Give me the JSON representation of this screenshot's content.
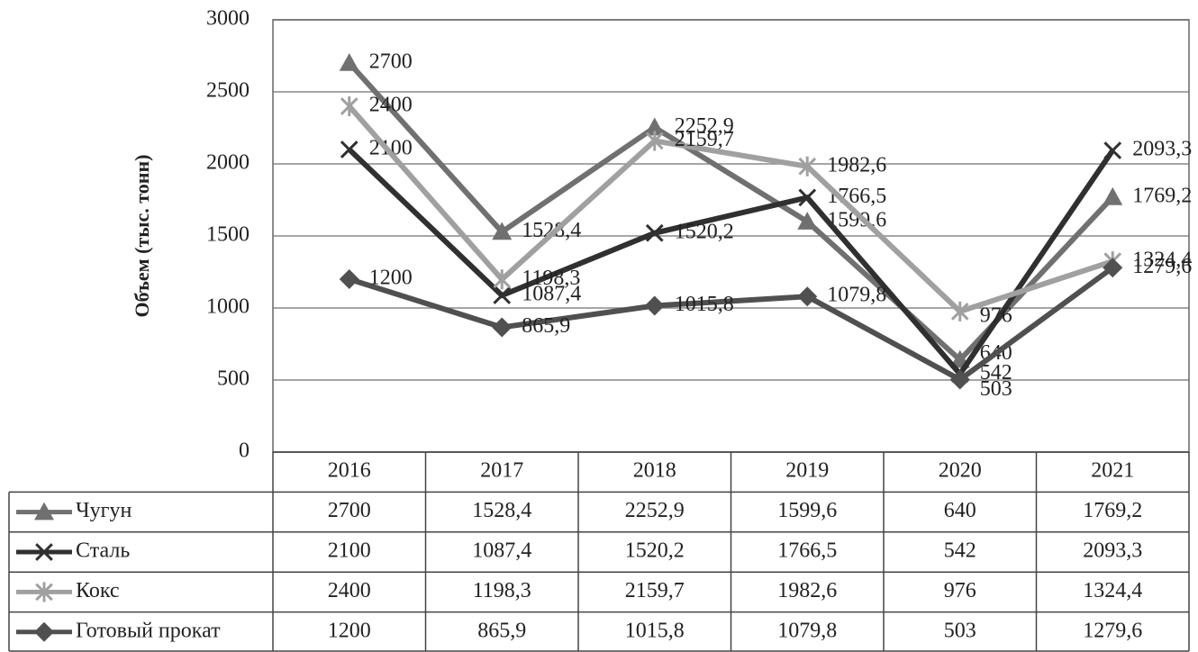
{
  "chart_data": {
    "type": "line",
    "y_label": "Объем (тыс. тонн)",
    "categories": [
      "2016",
      "2017",
      "2018",
      "2019",
      "2020",
      "2021"
    ],
    "ylim": [
      0,
      3000
    ],
    "yticks": [
      0,
      500,
      1000,
      1500,
      2000,
      2500,
      3000
    ],
    "grid": true,
    "series": [
      {
        "name": "Чугун",
        "color": "#707070",
        "marker": "triangle",
        "values": [
          2700,
          1528.4,
          2252.9,
          1599.6,
          640,
          1769.2
        ],
        "value_labels": [
          "2700",
          "1528,4",
          "2252,9",
          "1599,6",
          "640",
          "1769,2"
        ]
      },
      {
        "name": "Сталь",
        "color": "#303030",
        "marker": "x",
        "values": [
          2100,
          1087.4,
          1520.2,
          1766.5,
          542,
          2093.3
        ],
        "value_labels": [
          "2100",
          "1087,4",
          "1520,2",
          "1766,5",
          "542",
          "2093,3"
        ]
      },
      {
        "name": "Кокс",
        "color": "#a0a0a0",
        "marker": "asterisk",
        "values": [
          2400,
          1198.3,
          2159.7,
          1982.6,
          976,
          1324.4
        ],
        "value_labels": [
          "2400",
          "1198,3",
          "2159,7",
          "1982,6",
          "976",
          "1324,4"
        ]
      },
      {
        "name": "Готовый прокат",
        "color": "#505050",
        "marker": "diamond",
        "values": [
          1200,
          865.9,
          1015.8,
          1079.8,
          503,
          1279.6
        ],
        "value_labels": [
          "1200",
          "865,9",
          "1015,8",
          "1079,8",
          "503",
          "1279,6"
        ]
      }
    ]
  }
}
